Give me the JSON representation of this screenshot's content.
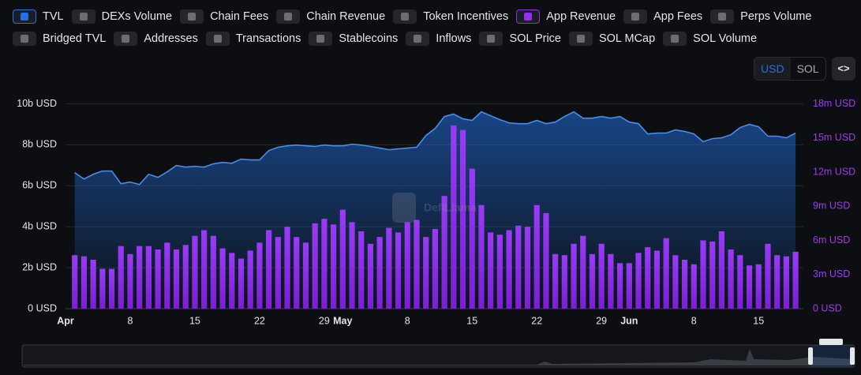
{
  "toggles": [
    {
      "label": "TVL",
      "on": true,
      "color": "#2172e5"
    },
    {
      "label": "DEXs Volume",
      "on": false
    },
    {
      "label": "Chain Fees",
      "on": false
    },
    {
      "label": "Chain Revenue",
      "on": false
    },
    {
      "label": "Token Incentives",
      "on": false
    },
    {
      "label": "App Revenue",
      "on": true,
      "color": "#8f2ff0"
    },
    {
      "label": "App Fees",
      "on": false
    },
    {
      "label": "Perps Volume",
      "on": false
    },
    {
      "label": "Bridged TVL",
      "on": false
    },
    {
      "label": "Addresses",
      "on": false
    },
    {
      "label": "Transactions",
      "on": false
    },
    {
      "label": "Stablecoins",
      "on": false
    },
    {
      "label": "Inflows",
      "on": false
    },
    {
      "label": "SOL Price",
      "on": false
    },
    {
      "label": "SOL MCap",
      "on": false
    },
    {
      "label": "SOL Volume",
      "on": false
    }
  ],
  "currency": {
    "options": [
      "USD",
      "SOL"
    ],
    "selected": 0
  },
  "embed_button": "<>",
  "chart_data": {
    "type": "bar-area",
    "watermark": "DefiLlama",
    "categories": [
      "Apr",
      null,
      null,
      null,
      null,
      null,
      null,
      "8",
      null,
      null,
      null,
      null,
      null,
      null,
      "15",
      null,
      null,
      null,
      null,
      null,
      null,
      "22",
      null,
      null,
      null,
      null,
      null,
      null,
      "29",
      null,
      "May",
      null,
      null,
      null,
      null,
      null,
      null,
      "8",
      null,
      null,
      null,
      null,
      null,
      null,
      "15",
      null,
      null,
      null,
      null,
      null,
      null,
      "22",
      null,
      null,
      null,
      null,
      null,
      null,
      "29",
      null,
      null,
      "Jun",
      null,
      null,
      null,
      null,
      null,
      null,
      "8",
      null,
      null,
      null,
      null,
      null,
      null,
      "15",
      null,
      null,
      null,
      null
    ],
    "bold_categories": [
      "Apr",
      "May",
      "Jun"
    ],
    "series": [
      {
        "name": "TVL",
        "kind": "area",
        "axis": "y",
        "color": "#4a8de8",
        "values": [
          null,
          6.64,
          6.33,
          6.56,
          6.72,
          6.72,
          6.1,
          6.18,
          6.06,
          6.56,
          6.41,
          6.68,
          6.99,
          6.91,
          6.95,
          6.91,
          7.07,
          7.14,
          7.1,
          7.3,
          7.26,
          7.26,
          7.72,
          7.88,
          7.95,
          7.99,
          7.95,
          7.92,
          7.99,
          7.95,
          7.95,
          8.03,
          7.99,
          7.92,
          7.84,
          7.76,
          7.8,
          7.84,
          7.88,
          8.45,
          8.8,
          9.38,
          9.5,
          9.27,
          9.19,
          9.61,
          9.42,
          9.23,
          9.07,
          9.03,
          9.03,
          9.19,
          9.03,
          9.11,
          9.38,
          9.61,
          9.3,
          9.3,
          9.38,
          9.3,
          9.38,
          9.11,
          9.03,
          8.53,
          8.57,
          8.57,
          8.73,
          8.65,
          8.53,
          8.15,
          8.3,
          8.34,
          8.49,
          8.84,
          9.0,
          8.88,
          8.42,
          8.42,
          8.34,
          8.57
        ]
      },
      {
        "name": "App Revenue",
        "kind": "bar",
        "axis": "y2",
        "color": "#8f2ff0",
        "values": [
          null,
          4.7,
          4.6,
          4.3,
          3.5,
          3.5,
          5.5,
          4.8,
          5.5,
          5.5,
          5.2,
          5.8,
          5.2,
          5.6,
          6.4,
          6.9,
          6.4,
          5.3,
          4.9,
          4.4,
          5.1,
          5.8,
          6.9,
          6.3,
          7.2,
          6.3,
          5.8,
          7.5,
          7.9,
          7.4,
          8.7,
          7.6,
          6.8,
          5.7,
          6.3,
          7.1,
          6.7,
          7.6,
          7.8,
          6.3,
          7.0,
          9.9,
          16.1,
          15.7,
          12.3,
          9.1,
          6.7,
          6.5,
          6.9,
          7.3,
          7.2,
          9.1,
          8.4,
          4.8,
          4.7,
          5.7,
          6.4,
          4.8,
          5.7,
          4.8,
          4.0,
          4.0,
          4.9,
          5.4,
          5.1,
          6.2,
          4.7,
          4.3,
          3.9,
          6.0,
          5.9,
          6.8,
          5.2,
          4.7,
          3.8,
          3.9,
          5.7,
          4.7,
          4.6,
          5.0
        ]
      }
    ],
    "ylim": [
      0,
      10
    ],
    "yticks": [
      {
        "value": 0,
        "label": "0 USD"
      },
      {
        "value": 2,
        "label": "2b USD"
      },
      {
        "value": 4,
        "label": "4b USD"
      },
      {
        "value": 6,
        "label": "6b USD"
      },
      {
        "value": 8,
        "label": "8b USD"
      },
      {
        "value": 10,
        "label": "10b USD"
      }
    ],
    "y2lim": [
      0,
      18
    ],
    "y2ticks": [
      {
        "value": 0,
        "label": "0 USD"
      },
      {
        "value": 3,
        "label": "3m USD"
      },
      {
        "value": 6,
        "label": "6m USD"
      },
      {
        "value": 9,
        "label": "9m USD"
      },
      {
        "value": 12,
        "label": "12m USD"
      },
      {
        "value": 15,
        "label": "15m USD"
      },
      {
        "value": 18,
        "label": "18m USD"
      }
    ],
    "grid": true
  }
}
